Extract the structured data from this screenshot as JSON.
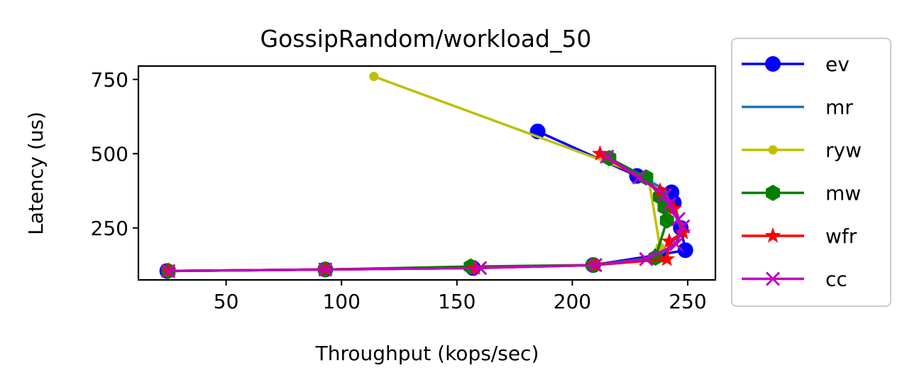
{
  "chart_data": {
    "type": "line",
    "title": "GossipRandom/workload_50",
    "xlabel": "Throughput (kops/sec)",
    "ylabel": "Latency (us)",
    "xlim": [
      12,
      262
    ],
    "ylim": [
      75,
      795
    ],
    "xticks": [
      50,
      100,
      150,
      200,
      250
    ],
    "yticks": [
      250,
      500,
      750
    ],
    "grid": false,
    "legend_position": "outside-right",
    "series": [
      {
        "name": "ev",
        "color": "#0000ff",
        "marker": "circle",
        "x": [
          24.5,
          93,
          157,
          209,
          238,
          249,
          247,
          244,
          243,
          228,
          185
        ],
        "y": [
          105,
          110,
          115,
          125,
          160,
          175,
          250,
          335,
          370,
          425,
          575
        ]
      },
      {
        "name": "mr",
        "color": "#1f77b4",
        "marker": "none",
        "x": [
          25,
          93,
          157,
          209,
          236,
          245,
          247,
          243,
          240,
          228
        ],
        "y": [
          105,
          110,
          115,
          125,
          150,
          200,
          250,
          320,
          380,
          430
        ]
      },
      {
        "name": "ryw",
        "color": "#bfbf00",
        "marker": "dot",
        "x": [
          25,
          93,
          157,
          209,
          236,
          238,
          233,
          114
        ],
        "y": [
          105,
          110,
          115,
          125,
          150,
          185,
          420,
          760
        ]
      },
      {
        "name": "mw",
        "color": "#008000",
        "marker": "hexagon",
        "x": [
          25,
          93,
          156,
          209,
          236,
          241,
          240,
          238,
          232,
          216
        ],
        "y": [
          105,
          110,
          120,
          125,
          150,
          275,
          320,
          355,
          420,
          485
        ]
      },
      {
        "name": "wfr",
        "color": "#ff0000",
        "marker": "star",
        "x": [
          25,
          93,
          158,
          210,
          241,
          242,
          248,
          244,
          238,
          212
        ],
        "y": [
          105,
          110,
          115,
          125,
          145,
          205,
          235,
          315,
          375,
          500
        ]
      },
      {
        "name": "cc",
        "color": "#bf00bf",
        "marker": "x",
        "x": [
          25,
          93,
          160,
          210,
          232,
          245,
          248,
          246,
          242,
          240,
          229,
          215
        ],
        "y": [
          105,
          110,
          115,
          125,
          145,
          195,
          255,
          280,
          330,
          360,
          420,
          490
        ]
      }
    ]
  }
}
